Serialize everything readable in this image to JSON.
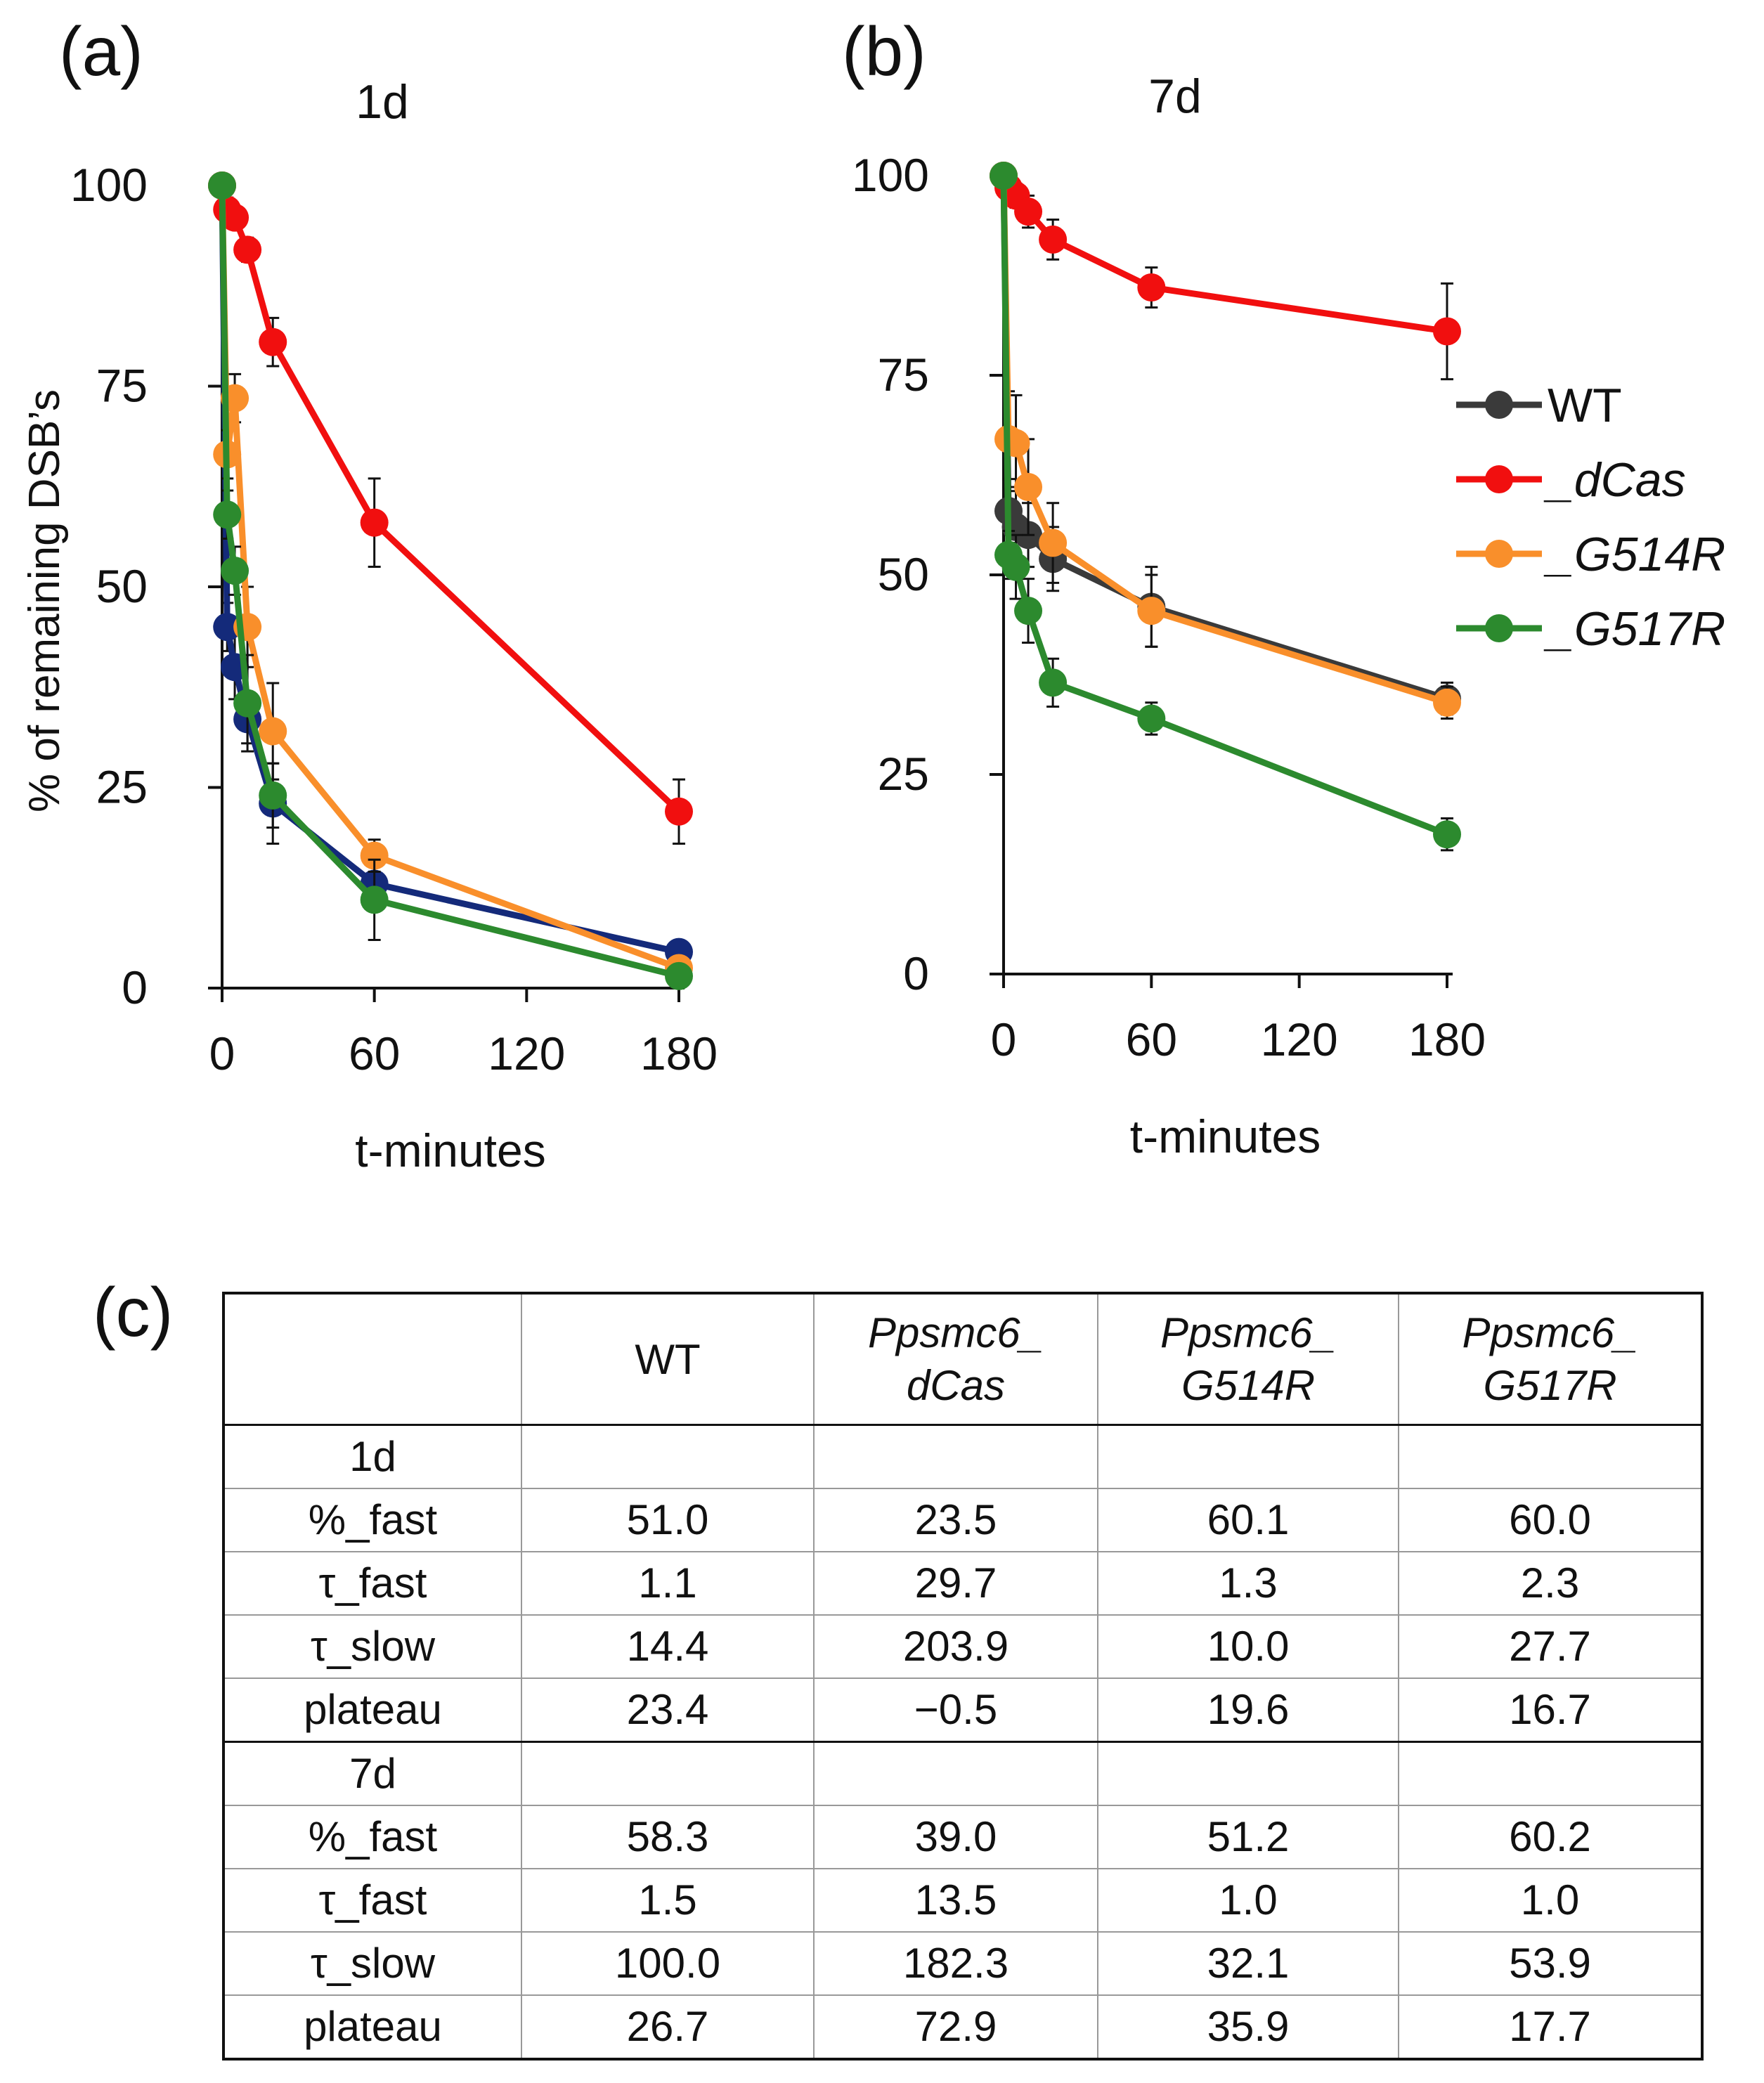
{
  "figure": {
    "panel_labels": {
      "a": "(a)",
      "b": "(b)",
      "c": "(c)"
    }
  },
  "chart_data": [
    {
      "id": "a",
      "type": "line",
      "title": "1d",
      "xlabel": "t-minutes",
      "ylabel": "% of remaining DSB’s",
      "xlim": [
        0,
        180
      ],
      "ylim": [
        0,
        100
      ],
      "xticks": [
        0,
        60,
        120,
        180
      ],
      "yticks": [
        0,
        25,
        50,
        75,
        100
      ],
      "grid": false,
      "legend": null,
      "series": [
        {
          "name": "WT",
          "color": "#142a7a",
          "x": [
            0,
            2,
            5,
            10,
            20,
            60,
            180
          ],
          "y": [
            100,
            45,
            40,
            33.5,
            23,
            13,
            4.5
          ],
          "err": [
            0,
            3,
            4,
            3,
            5,
            3,
            1
          ]
        },
        {
          "name": "_dCas",
          "color": "#f10f0f",
          "x": [
            0,
            2,
            5,
            10,
            20,
            60,
            180
          ],
          "y": [
            100,
            97,
            96,
            92,
            80.5,
            58,
            22
          ],
          "err": [
            0,
            1.5,
            1,
            1.5,
            3,
            5.5,
            4
          ]
        },
        {
          "name": "_G514R",
          "color": "#f98f2b",
          "x": [
            0,
            2,
            5,
            10,
            20,
            60,
            180
          ],
          "y": [
            100,
            66.5,
            73.5,
            45,
            32,
            16.5,
            2.5
          ],
          "err": [
            0,
            3,
            3,
            5,
            6,
            2,
            1
          ]
        },
        {
          "name": "_G517R",
          "color": "#2c8a2e",
          "x": [
            0,
            2,
            5,
            10,
            20,
            60,
            180
          ],
          "y": [
            100,
            59,
            52,
            35.5,
            24,
            11,
            1.5
          ],
          "err": [
            0,
            3,
            3,
            6,
            4,
            5,
            1
          ]
        }
      ]
    },
    {
      "id": "b",
      "type": "line",
      "title": "7d",
      "xlabel": "t-minutes",
      "ylabel": "",
      "xlim": [
        0,
        180
      ],
      "ylim": [
        0,
        100
      ],
      "xticks": [
        0,
        60,
        120,
        180
      ],
      "yticks": [
        0,
        25,
        50,
        75,
        100
      ],
      "grid": false,
      "legend": "right",
      "series": [
        {
          "name": "WT",
          "color": "#3a3a3a",
          "x": [
            0,
            2,
            5,
            10,
            20,
            60,
            180
          ],
          "y": [
            100,
            58,
            56,
            55,
            52,
            46,
            34.5
          ],
          "err": [
            0,
            4,
            5,
            4,
            4,
            5,
            2
          ]
        },
        {
          "name": "_dCas",
          "color": "#f10f0f",
          "x": [
            0,
            2,
            5,
            10,
            20,
            60,
            180
          ],
          "y": [
            100,
            98.5,
            97.5,
            95.5,
            92,
            86,
            80.5
          ],
          "err": [
            0,
            1.5,
            1.5,
            2,
            2.5,
            2.5,
            6
          ]
        },
        {
          "name": "_G514R",
          "color": "#f98f2b",
          "x": [
            0,
            2,
            5,
            10,
            20,
            60,
            180
          ],
          "y": [
            100,
            67,
            66.5,
            61,
            54,
            45.5,
            34
          ],
          "err": [
            0,
            6,
            6,
            6,
            5,
            4.5,
            2
          ]
        },
        {
          "name": "_G517R",
          "color": "#2c8a2e",
          "x": [
            0,
            2,
            5,
            10,
            20,
            60,
            180
          ],
          "y": [
            100,
            52.5,
            51,
            45.5,
            36.5,
            32,
            17.5
          ],
          "err": [
            0,
            3,
            4,
            4,
            3,
            2,
            2
          ]
        }
      ]
    },
    {
      "id": "c",
      "type": "table",
      "columns": [
        "",
        "WT",
        "Ppsmc6_ dCas",
        "Ppsmc6_ G514R",
        "Ppsmc6_ G517R"
      ],
      "column_lines": [
        [
          "WT"
        ],
        [
          "Ppsmc6_",
          "dCas"
        ],
        [
          "Ppsmc6_",
          "G514R"
        ],
        [
          "Ppsmc6_",
          "G517R"
        ]
      ],
      "sections": [
        {
          "label": "1d",
          "rows": [
            {
              "label": "%_fast",
              "values": [
                "51.0",
                "23.5",
                "60.1",
                "60.0"
              ]
            },
            {
              "label": "τ_fast",
              "values": [
                "1.1",
                "29.7",
                "1.3",
                "2.3"
              ]
            },
            {
              "label": "τ_slow",
              "values": [
                "14.4",
                "203.9",
                "10.0",
                "27.7"
              ]
            },
            {
              "label": "plateau",
              "values": [
                "23.4",
                "−0.5",
                "19.6",
                "16.7"
              ]
            }
          ]
        },
        {
          "label": "7d",
          "rows": [
            {
              "label": "%_fast",
              "values": [
                "58.3",
                "39.0",
                "51.2",
                "60.2"
              ]
            },
            {
              "label": "τ_fast",
              "values": [
                "1.5",
                "13.5",
                "1.0",
                "1.0"
              ]
            },
            {
              "label": "τ_slow",
              "values": [
                "100.0",
                "182.3",
                "32.1",
                "53.9"
              ]
            },
            {
              "label": "plateau",
              "values": [
                "26.7",
                "72.9",
                "35.9",
                "17.7"
              ]
            }
          ]
        }
      ]
    }
  ]
}
